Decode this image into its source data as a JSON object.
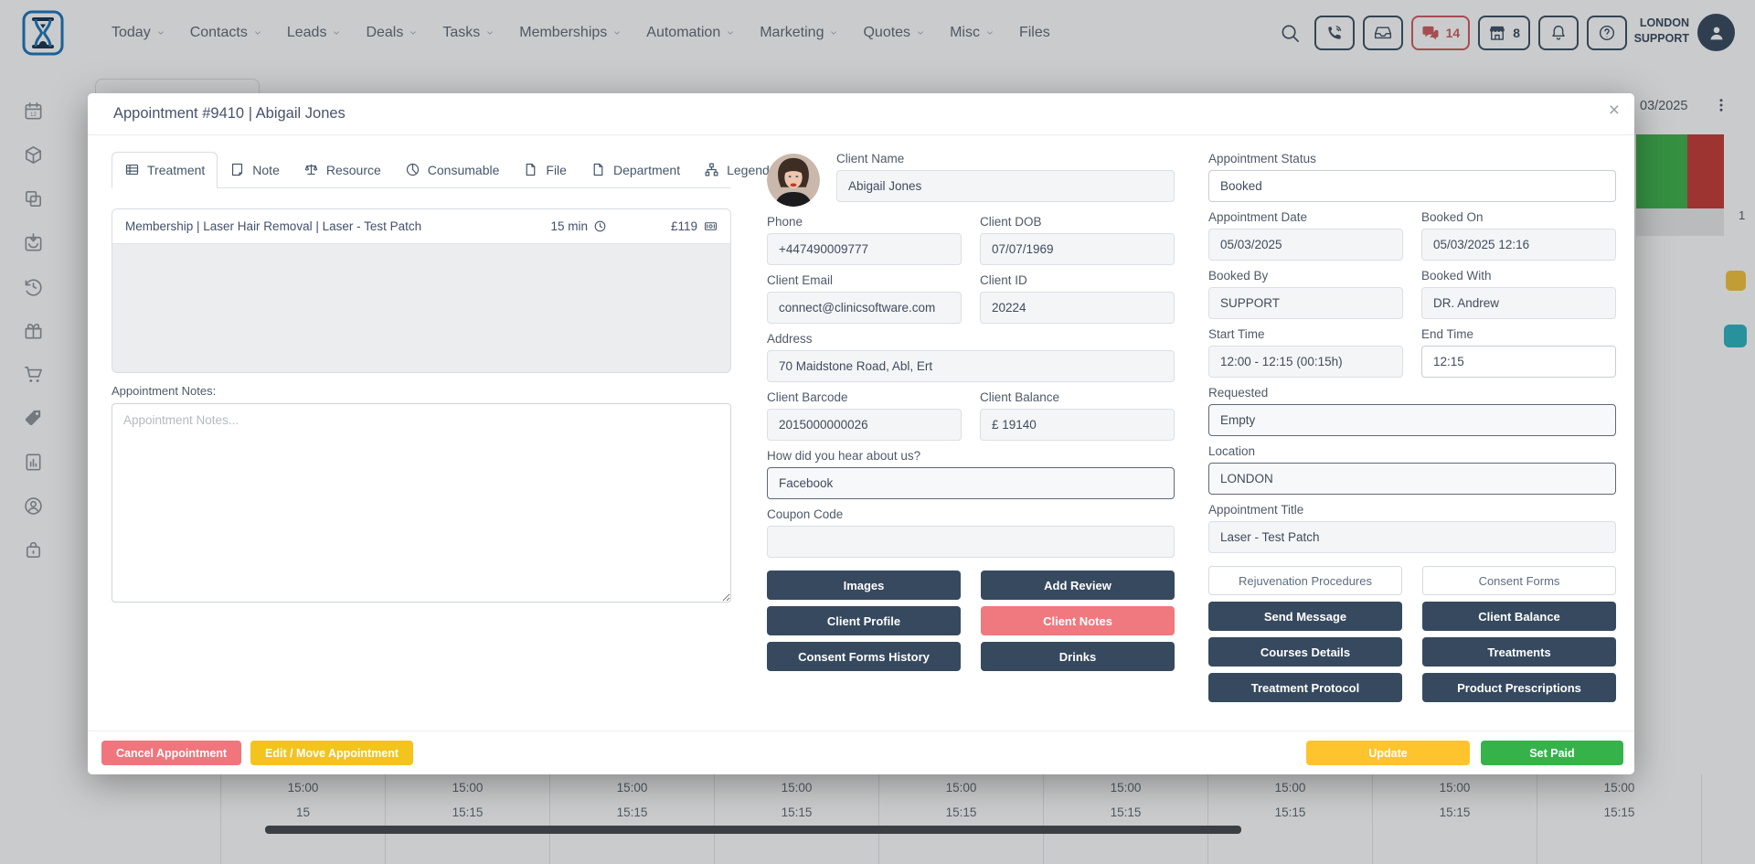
{
  "topbar": {
    "nav": [
      {
        "label": "Today",
        "chevron": true
      },
      {
        "label": "Contacts",
        "chevron": true
      },
      {
        "label": "Leads",
        "chevron": true
      },
      {
        "label": "Deals",
        "chevron": true
      },
      {
        "label": "Tasks",
        "chevron": true
      },
      {
        "label": "Memberships",
        "chevron": true
      },
      {
        "label": "Automation",
        "chevron": true
      },
      {
        "label": "Marketing",
        "chevron": true
      },
      {
        "label": "Quotes",
        "chevron": true
      },
      {
        "label": "Misc",
        "chevron": true
      },
      {
        "label": "Files",
        "chevron": false
      }
    ],
    "tools": [
      {
        "icon": "search",
        "style": "plain"
      },
      {
        "icon": "phone",
        "style": "boxed"
      },
      {
        "icon": "inbox",
        "style": "boxed"
      },
      {
        "icon": "chat",
        "style": "boxed-alert",
        "count": "14"
      },
      {
        "icon": "store",
        "style": "boxed",
        "count": "8"
      },
      {
        "icon": "bell",
        "style": "boxed"
      },
      {
        "icon": "help",
        "style": "boxed"
      }
    ],
    "user": {
      "line1": "LONDON",
      "line2": "SUPPORT"
    }
  },
  "sidebar": {
    "icons": [
      "calendar-12",
      "cube",
      "copy",
      "calendar-inbox",
      "history",
      "gift",
      "cart",
      "tag",
      "chart",
      "account",
      "lock"
    ]
  },
  "background": {
    "date_label": "03/2025",
    "corner_count": "1",
    "time_columns": [
      {
        "r1": "15:00",
        "r2": "15"
      },
      {
        "r1": "15:00",
        "r2": "15:15"
      },
      {
        "r1": "15:00",
        "r2": "15:15"
      },
      {
        "r1": "15:00",
        "r2": "15:15"
      },
      {
        "r1": "15:00",
        "r2": "15:15"
      },
      {
        "r1": "15:00",
        "r2": "15:15"
      },
      {
        "r1": "15:00",
        "r2": "15:15"
      },
      {
        "r1": "15:00",
        "r2": "15:15"
      },
      {
        "r1": "15:00",
        "r2": "15:15"
      }
    ]
  },
  "modal": {
    "title": "Appointment #9410 | Abigail Jones",
    "close_label": "×",
    "tabs": [
      {
        "label": "Treatment",
        "icon": "treatment",
        "active": true
      },
      {
        "label": "Note",
        "icon": "note",
        "active": false
      },
      {
        "label": "Resource",
        "icon": "scales",
        "active": false
      },
      {
        "label": "Consumable",
        "icon": "consumable",
        "active": false
      },
      {
        "label": "File",
        "icon": "file",
        "active": false
      },
      {
        "label": "Department",
        "icon": "file",
        "active": false
      },
      {
        "label": "Legend",
        "icon": "legend",
        "active": false
      }
    ],
    "treatment_row": {
      "name": "Membership | Laser Hair Removal | Laser - Test Patch",
      "duration": "15 min",
      "price": "£119"
    },
    "notes_label": "Appointment Notes:",
    "notes_placeholder": "Appointment Notes...",
    "client": {
      "name_label": "Client Name",
      "name": "Abigail Jones",
      "fields": [
        {
          "label": "Phone",
          "value": "+447490009777",
          "span": 1,
          "variant": "gray"
        },
        {
          "label": "Client DOB",
          "value": "07/07/1969",
          "span": 1,
          "variant": "gray"
        },
        {
          "label": "Client Email",
          "value": "connect@clinicsoftware.com",
          "span": 1,
          "variant": "gray"
        },
        {
          "label": "Client ID",
          "value": "20224",
          "span": 1,
          "variant": "gray"
        },
        {
          "label": "Address",
          "value": "70  Maidstone Road, Abl, Ert",
          "span": 2,
          "variant": "gray"
        },
        {
          "label": "Client Barcode",
          "value": "2015000000026",
          "span": 1,
          "variant": "gray"
        },
        {
          "label": "Client Balance",
          "value": "£ 19140",
          "span": 1,
          "variant": "gray"
        },
        {
          "label": "How did you hear about us?",
          "value": "Facebook",
          "span": 2,
          "variant": "select"
        },
        {
          "label": "Coupon Code",
          "value": "",
          "span": 2,
          "variant": "gray"
        }
      ],
      "buttons": [
        {
          "label": "Images",
          "variant": "navy"
        },
        {
          "label": "Add Review",
          "variant": "navy"
        },
        {
          "label": "Client Profile",
          "variant": "navy"
        },
        {
          "label": "Client Notes",
          "variant": "salmon"
        },
        {
          "label": "Consent Forms History",
          "variant": "navy"
        },
        {
          "label": "Drinks",
          "variant": "navy"
        }
      ]
    },
    "appointment": {
      "fields": [
        {
          "label": "Appointment Status",
          "value": "Booked",
          "span": 2,
          "variant": "white"
        },
        {
          "label": "Appointment Date",
          "value": "05/03/2025",
          "span": 1,
          "variant": "gray"
        },
        {
          "label": "Booked On",
          "value": "05/03/2025 12:16",
          "span": 1,
          "variant": "gray"
        },
        {
          "label": "Booked By",
          "value": "SUPPORT",
          "span": 1,
          "variant": "gray"
        },
        {
          "label": "Booked With",
          "value": "DR. Andrew",
          "span": 1,
          "variant": "gray"
        },
        {
          "label": "Start Time",
          "value": "12:00 - 12:15 (00:15h)",
          "span": 1,
          "variant": "gray"
        },
        {
          "label": "End Time",
          "value": "12:15",
          "span": 1,
          "variant": "white"
        },
        {
          "label": "Requested",
          "value": "Empty",
          "span": 2,
          "variant": "select"
        },
        {
          "label": "Location",
          "value": "LONDON",
          "span": 2,
          "variant": "select"
        },
        {
          "label": "Appointment Title",
          "value": "Laser - Test Patch",
          "span": 2,
          "variant": "gray"
        }
      ],
      "buttons": [
        {
          "label": "Rejuvenation Procedures",
          "variant": "white"
        },
        {
          "label": "Consent Forms",
          "variant": "white"
        },
        {
          "label": "Send Message",
          "variant": "navy"
        },
        {
          "label": "Client Balance",
          "variant": "navy"
        },
        {
          "label": "Courses Details",
          "variant": "navy"
        },
        {
          "label": "Treatments",
          "variant": "navy"
        },
        {
          "label": "Treatment Protocol",
          "variant": "navy"
        },
        {
          "label": "Product Prescriptions",
          "variant": "navy"
        }
      ]
    },
    "footer": {
      "cancel": "Cancel Appointment",
      "edit_move": "Edit / Move Appointment",
      "update": "Update",
      "set_paid": "Set Paid"
    }
  },
  "colors": {
    "navy": "#36495e",
    "salmon": "#f0787f",
    "cancel_red": "#f0757d",
    "edit_yellow": "#f2c41c",
    "update_amber": "#fdc42d",
    "paid_green": "#35b34a",
    "alert_red": "#cf5b60",
    "brand_blue": "#1a75bc",
    "block_green": "#3db24b",
    "block_red": "#c63a35",
    "badge_yellow": "#f5c33b",
    "badge_teal": "#2ab3c0"
  }
}
